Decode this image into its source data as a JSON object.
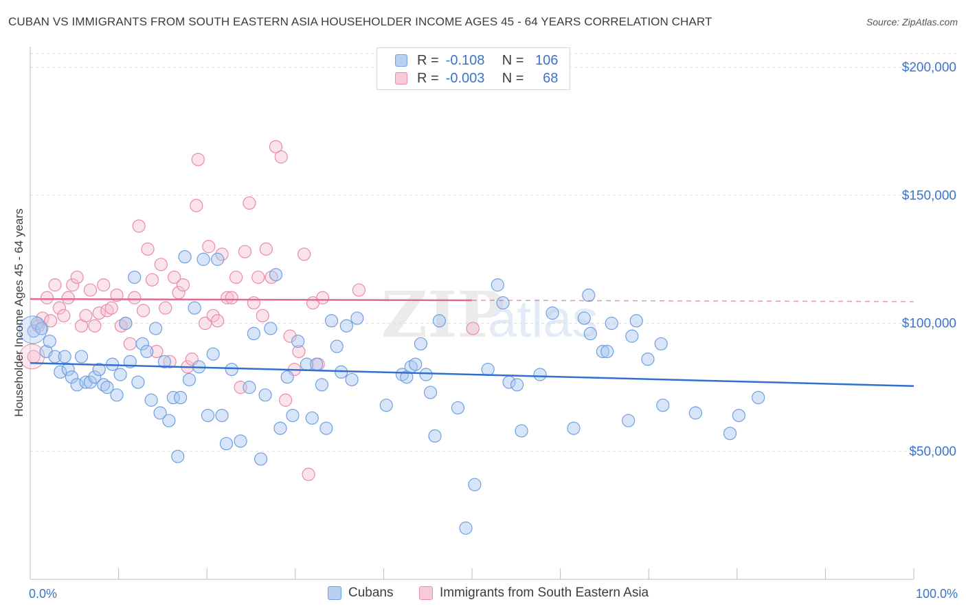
{
  "title": "CUBAN VS IMMIGRANTS FROM SOUTH EASTERN ASIA HOUSEHOLDER INCOME AGES 45 - 64 YEARS CORRELATION CHART",
  "source": "Source: ZipAtlas.com",
  "legend": {
    "rows": [
      {
        "r_label": "R =",
        "r_value": "-0.108",
        "n_label": "N =",
        "n_value": "106",
        "color": "#a9c6ef",
        "border": "#6f9fe0"
      },
      {
        "r_label": "R =",
        "r_value": "-0.003",
        "n_label": "N =",
        "n_value": "68",
        "color": "#f6c1d1",
        "border": "#e98aa9"
      }
    ]
  },
  "bottom_legend": [
    {
      "label": "Cubans",
      "color": "#b7cff2",
      "border": "#6f9fe0"
    },
    {
      "label": "Immigrants from South Eastern Asia",
      "color": "#f8c9d7",
      "border": "#e98aa9"
    }
  ],
  "chart_data": {
    "type": "scatter",
    "title": "CUBAN VS IMMIGRANTS FROM SOUTH EASTERN ASIA HOUSEHOLDER INCOME AGES 45 - 64 YEARS CORRELATION CHART",
    "xlabel": "",
    "ylabel": "Householder Income Ages 45 - 64 years",
    "xlim": [
      0,
      100
    ],
    "ylim": [
      0,
      200000
    ],
    "x_tick_labels": [
      "0.0%",
      "100.0%"
    ],
    "y_ticks": [
      50000,
      100000,
      150000,
      200000
    ],
    "y_tick_labels": [
      "$50,000",
      "$100,000",
      "$150,000",
      "$200,000"
    ],
    "grid": true,
    "legend_position": "top-center",
    "watermark": "ZIPatlas",
    "series": [
      {
        "name": "Cubans",
        "color": "#6f9fe0",
        "fill": "rgba(169,198,239,0.45)",
        "trend": {
          "x": [
            0,
            100
          ],
          "y": [
            84500,
            75500
          ],
          "color": "#2f6fd0"
        },
        "points": [
          [
            0.4,
            97000
          ],
          [
            0.8,
            100000
          ],
          [
            1.3,
            98000
          ],
          [
            1.8,
            89000
          ],
          [
            2.2,
            93000
          ],
          [
            2.8,
            87000
          ],
          [
            3.4,
            81000
          ],
          [
            3.9,
            87000
          ],
          [
            4.3,
            82000
          ],
          [
            4.7,
            79000
          ],
          [
            5.3,
            76000
          ],
          [
            5.8,
            87000
          ],
          [
            6.3,
            77000
          ],
          [
            6.8,
            77000
          ],
          [
            7.3,
            79000
          ],
          [
            7.8,
            82000
          ],
          [
            8.3,
            76000
          ],
          [
            8.7,
            75000
          ],
          [
            9.3,
            84000
          ],
          [
            9.8,
            72000
          ],
          [
            10.2,
            80000
          ],
          [
            10.8,
            100000
          ],
          [
            11.3,
            85000
          ],
          [
            11.8,
            118000
          ],
          [
            12.2,
            77000
          ],
          [
            12.7,
            92000
          ],
          [
            13.2,
            89000
          ],
          [
            13.7,
            70000
          ],
          [
            14.2,
            98000
          ],
          [
            14.7,
            65000
          ],
          [
            15.2,
            85000
          ],
          [
            15.7,
            62000
          ],
          [
            16.2,
            71000
          ],
          [
            16.7,
            48000
          ],
          [
            17.0,
            71000
          ],
          [
            17.5,
            126000
          ],
          [
            18.0,
            78000
          ],
          [
            18.6,
            106000
          ],
          [
            19.1,
            83000
          ],
          [
            19.6,
            125000
          ],
          [
            20.1,
            64000
          ],
          [
            20.7,
            88000
          ],
          [
            21.2,
            125000
          ],
          [
            21.7,
            64000
          ],
          [
            22.2,
            53000
          ],
          [
            22.8,
            82000
          ],
          [
            23.8,
            54000
          ],
          [
            24.8,
            75000
          ],
          [
            25.3,
            96000
          ],
          [
            26.1,
            47000
          ],
          [
            26.6,
            72000
          ],
          [
            27.2,
            98000
          ],
          [
            27.8,
            119000
          ],
          [
            28.3,
            59000
          ],
          [
            29.1,
            79000
          ],
          [
            29.7,
            64000
          ],
          [
            30.3,
            93000
          ],
          [
            31.3,
            84000
          ],
          [
            31.9,
            63000
          ],
          [
            32.4,
            84000
          ],
          [
            33.0,
            76000
          ],
          [
            33.5,
            59000
          ],
          [
            34.1,
            101000
          ],
          [
            34.7,
            91000
          ],
          [
            35.2,
            81000
          ],
          [
            35.8,
            99000
          ],
          [
            36.4,
            78000
          ],
          [
            37.0,
            102000
          ],
          [
            40.3,
            68000
          ],
          [
            42.1,
            80000
          ],
          [
            42.6,
            79000
          ],
          [
            43.1,
            83000
          ],
          [
            43.6,
            84000
          ],
          [
            44.2,
            92000
          ],
          [
            44.8,
            80000
          ],
          [
            45.3,
            73000
          ],
          [
            45.8,
            56000
          ],
          [
            46.3,
            101000
          ],
          [
            48.4,
            67000
          ],
          [
            49.3,
            20000
          ],
          [
            50.3,
            37000
          ],
          [
            51.8,
            82000
          ],
          [
            52.9,
            115000
          ],
          [
            53.5,
            108000
          ],
          [
            54.2,
            77000
          ],
          [
            55.1,
            76000
          ],
          [
            55.6,
            58000
          ],
          [
            57.7,
            80000
          ],
          [
            59.1,
            104000
          ],
          [
            61.5,
            59000
          ],
          [
            62.7,
            102000
          ],
          [
            63.2,
            111000
          ],
          [
            63.4,
            96000
          ],
          [
            64.8,
            89000
          ],
          [
            65.3,
            89000
          ],
          [
            65.8,
            100000
          ],
          [
            67.7,
            62000
          ],
          [
            68.1,
            95000
          ],
          [
            68.6,
            101000
          ],
          [
            69.9,
            86000
          ],
          [
            71.4,
            92000
          ],
          [
            71.6,
            68000
          ],
          [
            75.3,
            65000
          ],
          [
            79.2,
            57000
          ],
          [
            80.2,
            64000
          ],
          [
            82.4,
            71000
          ]
        ]
      },
      {
        "name": "Immigrants from South Eastern Asia",
        "color": "#e98aa9",
        "fill": "rgba(246,193,209,0.45)",
        "trend": {
          "x": [
            0,
            50
          ],
          "y": [
            109500,
            109000
          ],
          "dashed_to": 100,
          "color": "#e06a92"
        },
        "points": [
          [
            0.4,
            87000
          ],
          [
            0.9,
            99000
          ],
          [
            1.4,
            102000
          ],
          [
            1.9,
            110000
          ],
          [
            2.3,
            101000
          ],
          [
            2.8,
            115000
          ],
          [
            3.3,
            106000
          ],
          [
            3.8,
            103000
          ],
          [
            4.3,
            110000
          ],
          [
            4.8,
            115000
          ],
          [
            5.3,
            118000
          ],
          [
            5.8,
            99000
          ],
          [
            6.3,
            103000
          ],
          [
            6.8,
            113000
          ],
          [
            7.3,
            99000
          ],
          [
            7.8,
            104000
          ],
          [
            8.3,
            115000
          ],
          [
            8.7,
            105000
          ],
          [
            9.2,
            106000
          ],
          [
            9.8,
            111000
          ],
          [
            10.3,
            99000
          ],
          [
            10.8,
            100000
          ],
          [
            11.3,
            92000
          ],
          [
            11.8,
            110000
          ],
          [
            12.3,
            138000
          ],
          [
            12.8,
            105000
          ],
          [
            13.3,
            129000
          ],
          [
            13.8,
            117000
          ],
          [
            14.3,
            89000
          ],
          [
            14.8,
            123000
          ],
          [
            15.3,
            106000
          ],
          [
            15.8,
            85000
          ],
          [
            16.3,
            118000
          ],
          [
            16.8,
            112000
          ],
          [
            17.3,
            115000
          ],
          [
            17.8,
            83000
          ],
          [
            18.3,
            86000
          ],
          [
            18.8,
            146000
          ],
          [
            19.0,
            164000
          ],
          [
            19.8,
            100000
          ],
          [
            20.2,
            130000
          ],
          [
            20.7,
            103000
          ],
          [
            21.2,
            101000
          ],
          [
            21.7,
            127000
          ],
          [
            22.3,
            110000
          ],
          [
            22.8,
            110000
          ],
          [
            23.3,
            118000
          ],
          [
            23.8,
            75000
          ],
          [
            24.3,
            128000
          ],
          [
            24.8,
            147000
          ],
          [
            25.3,
            108000
          ],
          [
            25.8,
            118000
          ],
          [
            26.3,
            103000
          ],
          [
            26.7,
            129000
          ],
          [
            27.3,
            118000
          ],
          [
            27.8,
            169000
          ],
          [
            28.4,
            165000
          ],
          [
            28.9,
            70000
          ],
          [
            29.4,
            95000
          ],
          [
            29.9,
            82000
          ],
          [
            30.4,
            89000
          ],
          [
            31.0,
            127000
          ],
          [
            31.5,
            41000
          ],
          [
            32.0,
            108000
          ],
          [
            32.6,
            84000
          ],
          [
            33.1,
            110000
          ],
          [
            37.2,
            113000
          ],
          [
            50.1,
            98000
          ]
        ]
      }
    ]
  }
}
